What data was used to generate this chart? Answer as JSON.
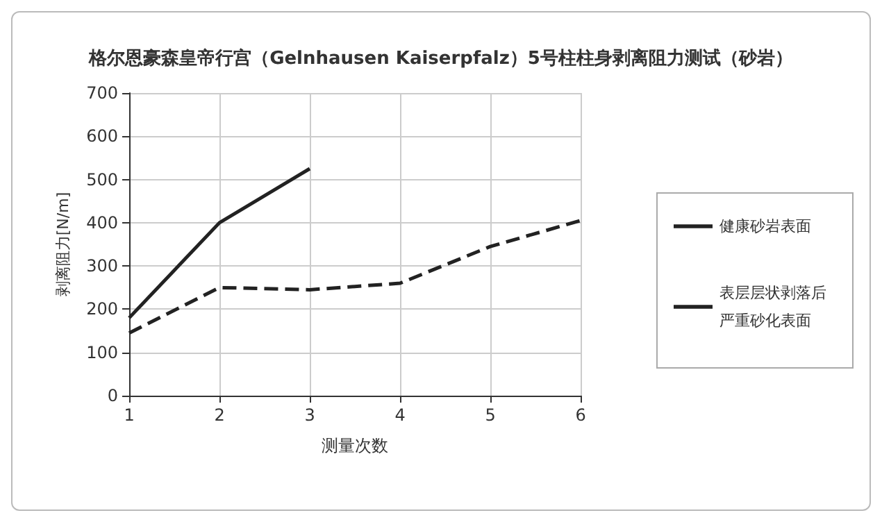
{
  "chart_data": {
    "type": "line",
    "title": "格尔恩豪森皇帝行宫（Gelnhausen Kaiserpfalz）5号柱柱身剥离阻力测试（砂岩）",
    "xlabel": "测量次数",
    "ylabel": "剥离阻力[N/m]",
    "x": [
      1,
      2,
      3,
      4,
      5,
      6
    ],
    "series": [
      {
        "name": "健康砂岩表面",
        "color": "#222222",
        "line_style": "solid",
        "values": [
          180,
          400,
          525,
          null,
          null,
          null
        ]
      },
      {
        "name": "表层层状剥落后严重砂化表面",
        "color": "#222222",
        "line_style": "dashed",
        "values": [
          145,
          250,
          245,
          260,
          345,
          405
        ]
      }
    ],
    "xlim": [
      1,
      6
    ],
    "xticks": [
      1,
      2,
      3,
      4,
      5,
      6
    ],
    "ylim": [
      0,
      700
    ],
    "yticks": [
      0,
      100,
      200,
      300,
      400,
      500,
      600,
      700
    ],
    "grid": true,
    "legend": "right",
    "marker": "none"
  }
}
